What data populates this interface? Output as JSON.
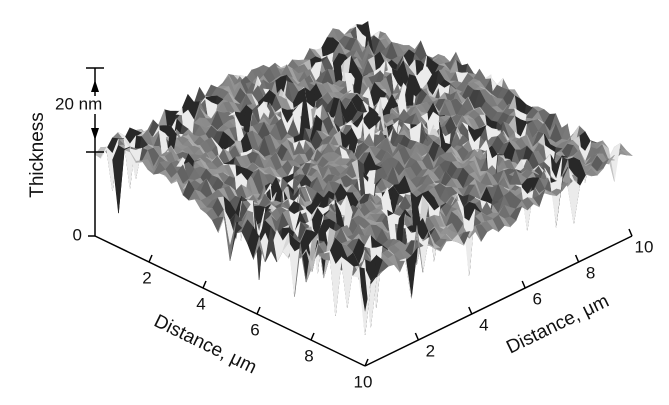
{
  "chart_data": {
    "type": "surface",
    "zlabel": "Thickness",
    "scale_bar_label": "20 nm",
    "zticks": [
      0
    ],
    "xlabel": "Distance, μm",
    "ylabel": "Distance, μm",
    "xlim": [
      0,
      10
    ],
    "xticks": [
      2,
      4,
      6,
      8,
      10
    ],
    "ylim": [
      0,
      10
    ],
    "yticks": [
      2,
      4,
      6,
      8,
      10
    ]
  }
}
